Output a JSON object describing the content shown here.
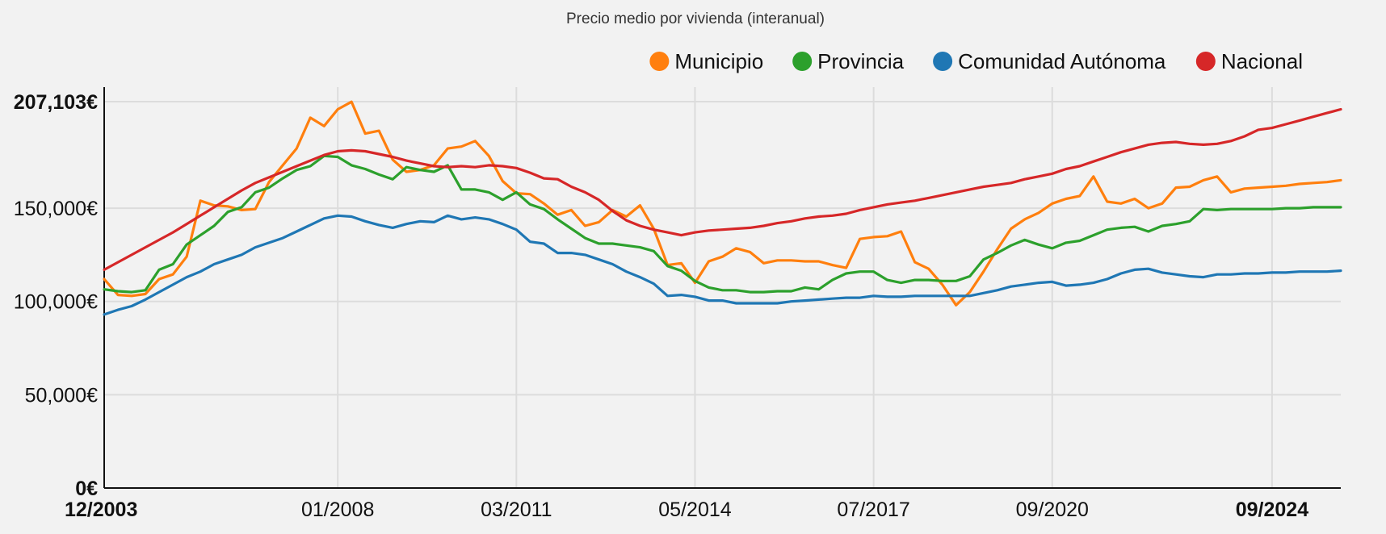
{
  "chart_data": {
    "type": "line",
    "title": "Precio medio por vivienda (interanual)",
    "xlabel": "",
    "ylabel": "",
    "ylim": [
      0,
      207103
    ],
    "y_ticks": [
      {
        "value": 0,
        "label": "0€",
        "bold": true
      },
      {
        "value": 50000,
        "label": "50,000€",
        "bold": false
      },
      {
        "value": 100000,
        "label": "100,000€",
        "bold": false
      },
      {
        "value": 150000,
        "label": "150,000€",
        "bold": false
      },
      {
        "value": 207103,
        "label": "207,103€",
        "bold": true
      }
    ],
    "x_ticks": [
      {
        "index": 0,
        "label": "12/2003",
        "bold": true
      },
      {
        "index": 17,
        "label": "01/2008",
        "bold": false
      },
      {
        "index": 30,
        "label": "03/2011",
        "bold": false
      },
      {
        "index": 43,
        "label": "05/2014",
        "bold": false
      },
      {
        "index": 56,
        "label": "07/2017",
        "bold": false
      },
      {
        "index": 69,
        "label": "09/2020",
        "bold": false
      },
      {
        "index": 85,
        "label": "09/2024",
        "bold": true
      }
    ],
    "grid": true,
    "legend_position": "top-right",
    "series": [
      {
        "name": "Municipio",
        "color": "#ff7f0e",
        "values": [
          112000,
          103500,
          103000,
          104000,
          112000,
          114500,
          124000,
          154000,
          151500,
          151000,
          149000,
          149500,
          164000,
          173000,
          182000,
          198500,
          194000,
          203000,
          207000,
          190000,
          191500,
          176000,
          169500,
          170500,
          173000,
          182000,
          183000,
          186000,
          178000,
          164500,
          158000,
          157500,
          152500,
          146500,
          149000,
          140500,
          142500,
          149000,
          145500,
          151500,
          139000,
          119500,
          120500,
          110000,
          121500,
          124000,
          128500,
          126500,
          120500,
          122000,
          122000,
          121500,
          121500,
          119500,
          118000,
          133500,
          134500,
          135000,
          137500,
          121000,
          117500,
          109000,
          98000,
          105000,
          116000,
          128000,
          139000,
          144000,
          147500,
          152500,
          155000,
          156500,
          167000,
          153500,
          152500,
          155000,
          150000,
          152500,
          161000,
          161500,
          165000,
          167000,
          158500,
          160500,
          161000,
          161500,
          162000,
          163000,
          163500,
          164000,
          165000
        ]
      },
      {
        "name": "Provincia",
        "color": "#2ca02c",
        "values": [
          106500,
          105500,
          105000,
          106000,
          117000,
          120000,
          130500,
          135500,
          140500,
          148000,
          150500,
          158500,
          161000,
          166000,
          170500,
          172500,
          178000,
          177500,
          173000,
          171000,
          168000,
          165500,
          172000,
          170500,
          169500,
          173000,
          160000,
          160000,
          158500,
          154500,
          158500,
          152000,
          149500,
          144000,
          139000,
          134000,
          131000,
          131000,
          130000,
          129000,
          127000,
          119000,
          116500,
          111000,
          107500,
          106000,
          106000,
          105000,
          105000,
          105500,
          105500,
          107500,
          106500,
          111500,
          115000,
          116000,
          116000,
          111500,
          110000,
          111500,
          111500,
          111000,
          111000,
          113500,
          122500,
          126000,
          130000,
          133000,
          130500,
          128500,
          131500,
          132500,
          135500,
          138500,
          139500,
          140000,
          137500,
          140500,
          141500,
          143000,
          149500,
          149000,
          149500,
          149500,
          149500,
          149500,
          150000,
          150000,
          150500,
          150500,
          150500
        ]
      },
      {
        "name": "Comunidad Autónoma",
        "color": "#1f77b4",
        "values": [
          93000,
          95500,
          97500,
          101000,
          105000,
          109000,
          113000,
          116000,
          120000,
          122500,
          125000,
          129000,
          131500,
          134000,
          137500,
          141000,
          144500,
          146000,
          145500,
          143000,
          141000,
          139500,
          141500,
          143000,
          142500,
          146000,
          144000,
          145000,
          144000,
          141500,
          138500,
          132000,
          131000,
          126000,
          126000,
          125000,
          122500,
          120000,
          116000,
          113000,
          109500,
          103000,
          103500,
          102500,
          100500,
          100500,
          99000,
          99000,
          99000,
          99000,
          100000,
          100500,
          101000,
          101500,
          102000,
          102000,
          103000,
          102500,
          102500,
          103000,
          103000,
          103000,
          103000,
          103000,
          104500,
          106000,
          108000,
          109000,
          110000,
          110500,
          108500,
          109000,
          110000,
          112000,
          115000,
          117000,
          117500,
          115500,
          114500,
          113500,
          113000,
          114500,
          114500,
          115000,
          115000,
          115500,
          115500,
          116000,
          116000,
          116000,
          116500
        ]
      },
      {
        "name": "Nacional",
        "color": "#d62728",
        "values": [
          117000,
          121000,
          125000,
          129000,
          133000,
          137000,
          141500,
          146000,
          150500,
          155000,
          159500,
          163500,
          166500,
          169500,
          172500,
          175500,
          178500,
          180500,
          181000,
          180500,
          179000,
          177500,
          175500,
          174000,
          172500,
          172000,
          172500,
          172000,
          173000,
          172500,
          171500,
          169000,
          166000,
          165500,
          161500,
          158500,
          154500,
          148500,
          143500,
          140500,
          138500,
          137000,
          135500,
          137000,
          138000,
          138500,
          139000,
          139500,
          140500,
          142000,
          143000,
          144500,
          145500,
          146000,
          147000,
          149000,
          150500,
          152000,
          153000,
          154000,
          155500,
          157000,
          158500,
          160000,
          161500,
          162500,
          163500,
          165500,
          167000,
          168500,
          171000,
          172500,
          175000,
          177500,
          180000,
          182000,
          184000,
          185000,
          185500,
          184500,
          184000,
          184500,
          186000,
          188500,
          192000,
          193000,
          195000,
          197000,
          199000,
          201000,
          203000
        ]
      }
    ]
  }
}
